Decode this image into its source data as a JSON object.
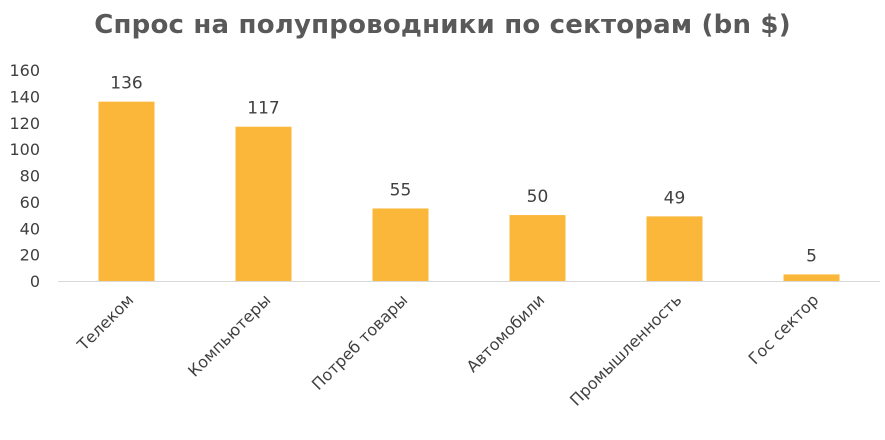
{
  "chart_data": {
    "type": "bar",
    "title": "Спрос на полупроводники по секторам (bn $)",
    "categories": [
      "Телеком",
      "Компьютеры",
      "Потреб товары",
      "Автомобили",
      "Промышленность",
      "Гос сектор"
    ],
    "values": [
      136,
      117,
      55,
      50,
      49,
      5
    ],
    "data_labels": [
      "136",
      "117",
      "55",
      "50",
      "49",
      "5"
    ],
    "y_ticks": [
      "0",
      "20",
      "40",
      "60",
      "80",
      "100",
      "120",
      "140",
      "160"
    ],
    "ylim": [
      0,
      160
    ],
    "xlabel": "",
    "ylabel": "",
    "grid": false,
    "legend": "none",
    "bar_color": "#FBB73A",
    "axis_color": "#D9D9D9",
    "text_color": "#404040",
    "title_color": "#595959"
  }
}
